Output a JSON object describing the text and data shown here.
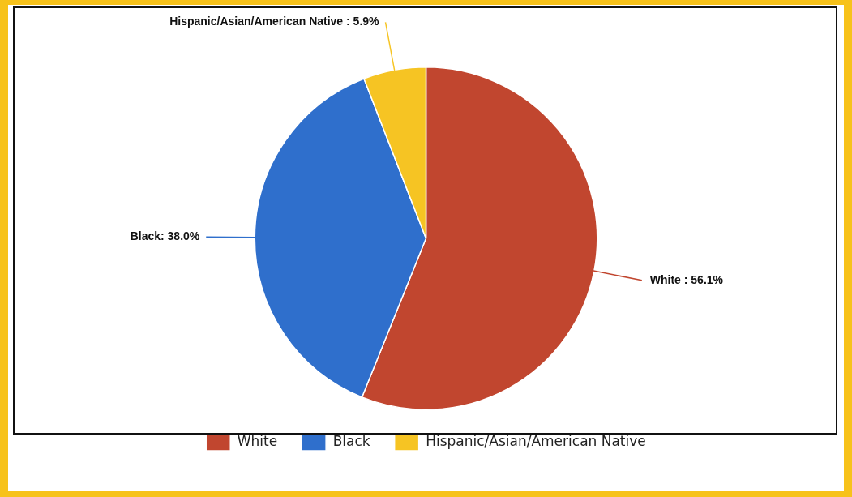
{
  "chart_data": {
    "type": "pie",
    "categories": [
      "White",
      "Black",
      "Hispanic/Asian/American Native"
    ],
    "values": [
      56.1,
      38.0,
      5.9
    ],
    "colors": [
      "#c1462f",
      "#2f6fcc",
      "#f6c423"
    ],
    "value_labels": [
      "White : 56.1%",
      "Black: 38.0%",
      "Hispanic/Asian/American Native : 5.9%"
    ],
    "legend": "bottom"
  }
}
